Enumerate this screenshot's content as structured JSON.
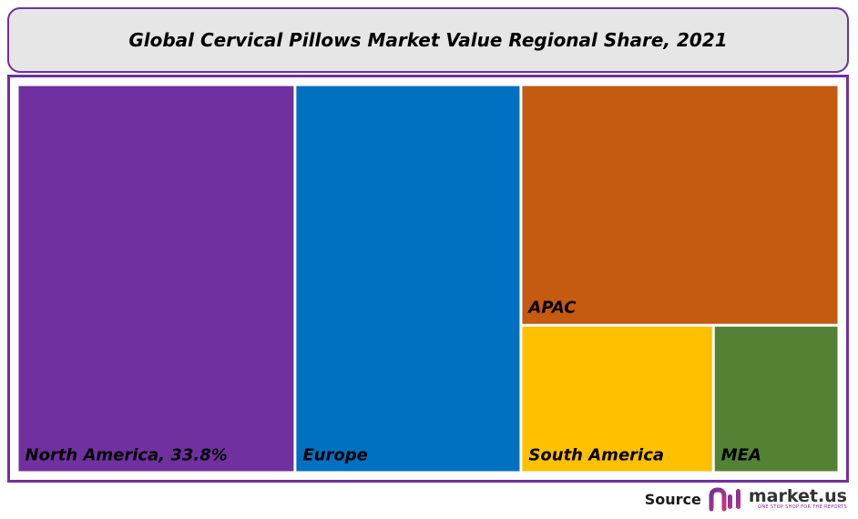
{
  "title": "Global Cervical Pillows Market Value Regional Share, 2021",
  "chart_data": {
    "type": "treemap",
    "title": "Global Cervical Pillows Market Value Regional Share, 2021",
    "items": [
      {
        "label": "North America, 33.8%",
        "name": "North America",
        "value": 33.8,
        "color": "#7030a0"
      },
      {
        "label": "Europe",
        "name": "Europe",
        "value": 27.5,
        "color": "#0070c0"
      },
      {
        "label": "APAC",
        "name": "APAC",
        "value": 24.0,
        "color": "#c55a11"
      },
      {
        "label": "South America",
        "name": "South America",
        "value": 8.9,
        "color": "#ffc000"
      },
      {
        "label": "MEA",
        "name": "MEA",
        "value": 5.8,
        "color": "#548235"
      }
    ]
  },
  "source": {
    "label": "Source",
    "logo_name": "market.us",
    "logo_tagline": "ONE STOP SHOP FOR THE REPORTS",
    "logo_colors": [
      "#7030a0",
      "#c9357a"
    ]
  }
}
